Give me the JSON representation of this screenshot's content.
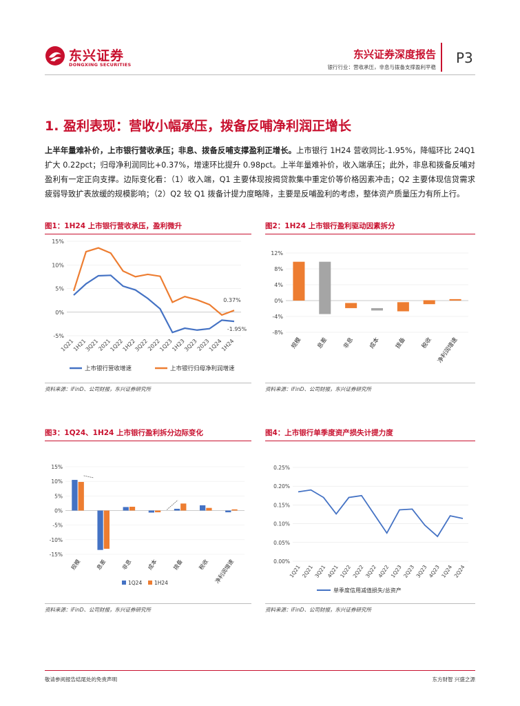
{
  "header": {
    "logo_cn": "东兴证券",
    "logo_en": "DONGXING SECURITIES",
    "title": "东兴证券深度报告",
    "subtitle": "银行行业：营收承压，非息与拨备支撑盈利平稳",
    "page": "P3"
  },
  "section": {
    "title": "1. 盈利表现：营收小幅承压，拨备反哺净利润正增长"
  },
  "paragraph": {
    "lead": "上半年量难补价，上市银行营收承压；非息、拨备反哺支撑盈利正增长。",
    "body": "上市银行 1H24 营收同比-1.95%，降幅环比 24Q1 扩大 0.22pct；归母净利润同比+0.37%，增速环比提升 0.98pct。上半年量难补价，收入端承压；此外，非息和拨备反哺对盈利有一定正向支撑。边际变化看：（1）收入端，Q1 主要体现按揭贷款集中重定价等价格因素冲击；Q2 主要体现信贷需求疲弱导致扩表放缓的规模影响；（2）Q2 较 Q1 拨备计提力度略降，主要是反哺盈利的考虑，整体资产质量压力有所上行。"
  },
  "figures": {
    "fig1": {
      "title": "图1：1H24 上市银行营收承压，盈利微升",
      "source": "资料来源：iFinD、公司财报，东兴证券研究所"
    },
    "fig2": {
      "title": "图2：1H24 上市银行盈利驱动因素拆分",
      "source": "资料来源：iFinD、公司财报，东兴证券研究所"
    },
    "fig3": {
      "title": "图3：1Q24、1H24 上市银行盈利拆分边际变化",
      "source": "资料来源：iFinD、公司财报，东兴证券研究所"
    },
    "fig4": {
      "title": "图4：上市银行单季度资产损失计提力度",
      "source": "资料来源：iFinD、公司财报，东兴证券研究所"
    }
  },
  "footer": {
    "left": "敬请参阅报告结尾处的免责声明",
    "right": "东方财智 兴盛之源"
  },
  "colors": {
    "blue": "#4472c4",
    "orange": "#ed7d31",
    "gray": "#a5a5a5",
    "brand": "#c8102e"
  },
  "chart_data": [
    {
      "type": "line",
      "title": "图1：1H24 上市银行营收承压，盈利微升",
      "x": [
        "1Q21",
        "1H21",
        "3Q21",
        "2021",
        "1Q22",
        "1H22",
        "3Q22",
        "2022",
        "1Q23",
        "1H23",
        "3Q23",
        "2023",
        "1Q24",
        "1H24"
      ],
      "series": [
        {
          "name": "上市银行营收增速",
          "values": [
            3.6,
            6.0,
            7.7,
            7.8,
            5.5,
            4.7,
            2.9,
            0.7,
            -4.3,
            -3.4,
            -3.8,
            -3.5,
            -1.7,
            -1.95
          ]
        },
        {
          "name": "上市银行归母净利润增速",
          "values": [
            4.5,
            12.8,
            13.6,
            12.5,
            8.7,
            7.5,
            8.0,
            7.6,
            2.1,
            3.3,
            2.6,
            1.6,
            -0.6,
            0.37
          ]
        }
      ],
      "annotations": [
        "0.37%",
        "-1.95%"
      ],
      "yticks": [
        "15%",
        "10%",
        "5%",
        "0%",
        "-5%"
      ],
      "ylim": [
        -5,
        15
      ]
    },
    {
      "type": "bar",
      "title": "图2：1H24 上市银行盈利驱动因素拆分",
      "categories": [
        "规模",
        "息差",
        "非息",
        "成本",
        "拨备",
        "税收",
        "净利润增速"
      ],
      "bars": [
        {
          "base": 0,
          "end": 9.8
        },
        {
          "base": 9.8,
          "end": -3.4
        },
        {
          "base": -0.6,
          "end": -1.9
        },
        {
          "base": -1.9,
          "end": -2.5
        },
        {
          "base": -2.7,
          "end": -0.4
        },
        {
          "base": -0.9,
          "end": 0.1
        },
        {
          "base": 0,
          "end": 0.37
        }
      ],
      "bar_colors": [
        "#ed7d31",
        "#a5a5a5",
        "#ed7d31",
        "#a5a5a5",
        "#ed7d31",
        "#ed7d31",
        "#ed7d31"
      ],
      "yticks": [
        "12%",
        "8%",
        "4%",
        "0%",
        "-4%",
        "-8%"
      ],
      "ylim": [
        -8,
        12
      ]
    },
    {
      "type": "bar",
      "title": "图3：1Q24、1H24 上市银行盈利拆分边际变化",
      "categories": [
        "规模",
        "息差",
        "非息",
        "成本",
        "拨备",
        "税收",
        "净利润增速"
      ],
      "series": [
        {
          "name": "1Q24",
          "values": [
            10.5,
            -13.5,
            1.2,
            -0.7,
            0.6,
            1.8,
            -0.6
          ]
        },
        {
          "name": "1H24",
          "values": [
            9.8,
            -13.1,
            1.3,
            -0.6,
            2.4,
            0.9,
            0.4
          ]
        }
      ],
      "yticks": [
        "15%",
        "10%",
        "5%",
        "0%",
        "-5%",
        "-10%",
        "-15%"
      ],
      "ylim": [
        -15,
        15
      ]
    },
    {
      "type": "line",
      "title": "图4：上市银行单季度资产损失计提力度",
      "x": [
        "1Q21",
        "2Q21",
        "3Q21",
        "4Q21",
        "1Q22",
        "2Q22",
        "3Q22",
        "4Q22",
        "1Q23",
        "2Q23",
        "3Q23",
        "4Q23",
        "1Q24",
        "2Q24"
      ],
      "series": [
        {
          "name": "单季度信用减值损失/总资产",
          "values": [
            0.185,
            0.19,
            0.17,
            0.126,
            0.17,
            0.175,
            0.125,
            0.075,
            0.137,
            0.139,
            0.096,
            0.066,
            0.121,
            0.114
          ]
        }
      ],
      "yticks": [
        "0.25%",
        "0.20%",
        "0.15%",
        "0.10%",
        "0.05%",
        "0.00%"
      ],
      "ylim": [
        0,
        0.25
      ]
    }
  ]
}
